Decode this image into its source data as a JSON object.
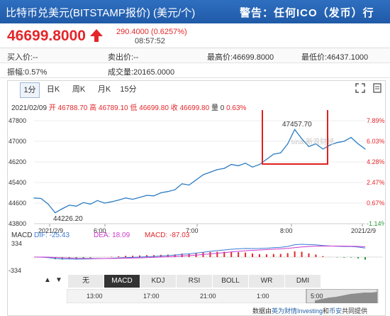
{
  "header": {
    "title": "比特币兑美元(BITSTAMP报价) (美元/个)",
    "warning": "警告：任何ICO（发币）行"
  },
  "quote": {
    "price": "46699.8000",
    "change": "290.4000 (0.6257%)",
    "time": "08:57:52"
  },
  "stats": {
    "bid": "买入价:--",
    "ask": "卖出价:--",
    "high": "最高价:46699.8000",
    "low": "最低价:46437.1000",
    "amplitude": "振幅:0.57%",
    "volume": "成交量:20165.0000"
  },
  "tabs": [
    "1分",
    "日K",
    "周K",
    "月K",
    "15分"
  ],
  "info_line": {
    "date": "2021/02/09",
    "open": "开 46788.70",
    "high": "高 46789.10",
    "low": "低 46699.80",
    "close": "收 46699.80",
    "volume": "量 0",
    "pct": "0.63%"
  },
  "chart_data": {
    "type": "line",
    "y_ticks": [
      "47800",
      "47000",
      "46200",
      "45400",
      "44600",
      "43800"
    ],
    "pct_ticks": [
      "7.89%",
      "6.03%",
      "4.28%",
      "2.47%",
      "0.67%",
      "-1.14%"
    ],
    "x_ticks": [
      "2021/2/9",
      "6:00",
      "7:00",
      "8:00",
      "2021/2/9"
    ],
    "ylim": [
      43800,
      47800
    ],
    "annotations": [
      "47457.70",
      "44226.20"
    ],
    "x": [
      "5:00",
      "5:05",
      "5:10",
      "5:15",
      "5:20",
      "5:25",
      "5:30",
      "5:35",
      "5:40",
      "5:45",
      "5:50",
      "5:55",
      "6:00",
      "6:05",
      "6:10",
      "6:15",
      "6:20",
      "6:25",
      "6:30",
      "6:35",
      "6:40",
      "6:45",
      "6:50",
      "6:55",
      "7:00",
      "7:05",
      "7:10",
      "7:15",
      "7:20",
      "7:25",
      "7:30",
      "7:35",
      "7:40",
      "7:45",
      "7:50",
      "7:55",
      "8:00",
      "8:05",
      "8:10",
      "8:15",
      "8:20",
      "8:25",
      "8:30",
      "8:35",
      "8:40",
      "8:45",
      "8:50",
      "8:55"
    ],
    "values": [
      44800,
      44780,
      44560,
      44226,
      44380,
      44520,
      44480,
      44620,
      44560,
      44700,
      44600,
      44650,
      44720,
      44800,
      44750,
      44820,
      44900,
      44880,
      45000,
      45050,
      45120,
      45350,
      45300,
      45500,
      45700,
      45800,
      45900,
      45950,
      46100,
      46050,
      46150,
      46000,
      46100,
      46300,
      46500,
      46550,
      46900,
      47457,
      47100,
      46800,
      46900,
      46700,
      46850,
      46950,
      47000,
      47150,
      46900,
      46700
    ],
    "macd": {
      "label": "MACD",
      "dif": "DIF: -25.43",
      "dea": "DEA: 18.09",
      "macd": "MACD: -87.03",
      "top": "334",
      "bottom": "-334"
    }
  },
  "indicator_tabs": [
    "无",
    "MACD",
    "KDJ",
    "RSI",
    "BOLL",
    "WR",
    "DMI"
  ],
  "timeline": [
    "13:00",
    "17:00",
    "21:00",
    "1:00",
    "5:00"
  ],
  "footer": {
    "prefix": "数据由",
    "provider1": "英为财情Investing",
    "mid": "和",
    "provider2": "币安",
    "suffix": "共同提供"
  },
  "colors": {
    "up": "#e4262a",
    "line": "#2b7cc2",
    "dif": "#3d7ad6",
    "dea": "#cc39cc",
    "highlight": "#e02020"
  }
}
